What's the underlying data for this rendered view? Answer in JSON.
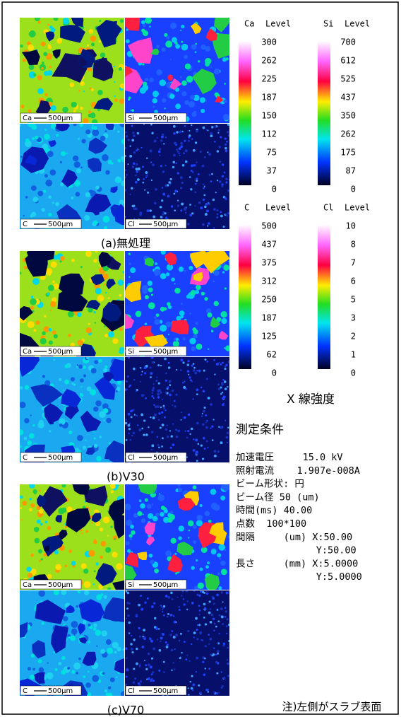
{
  "panels": [
    {
      "caption": "(a)無処理",
      "maps": [
        {
          "element": "Ca",
          "scale": "500μm"
        },
        {
          "element": "Si",
          "scale": "500μm"
        },
        {
          "element": "C",
          "scale": "500μm"
        },
        {
          "element": "Cl",
          "scale": "500μm"
        }
      ]
    },
    {
      "caption": "(b)V30",
      "maps": [
        {
          "element": "Ca",
          "scale": "500μm"
        },
        {
          "element": "Si",
          "scale": "500μm"
        },
        {
          "element": "C",
          "scale": "500μm"
        },
        {
          "element": "Cl",
          "scale": "500μm"
        }
      ]
    },
    {
      "caption": "(c)V70",
      "maps": [
        {
          "element": "Ca",
          "scale": "500μm"
        },
        {
          "element": "Si",
          "scale": "500μm"
        },
        {
          "element": "C",
          "scale": "500μm"
        },
        {
          "element": "Cl",
          "scale": "500μm"
        }
      ]
    }
  ],
  "colorbars": [
    {
      "element": "Ca",
      "unit": "Level",
      "ticks": [
        "300",
        "262",
        "225",
        "187",
        "150",
        "112",
        "75",
        "37",
        "0"
      ]
    },
    {
      "element": "Si",
      "unit": "Level",
      "ticks": [
        "700",
        "612",
        "525",
        "437",
        "350",
        "262",
        "175",
        "87",
        "0"
      ]
    },
    {
      "element": "C",
      "unit": "Level",
      "ticks": [
        "500",
        "437",
        "375",
        "312",
        "250",
        "187",
        "125",
        "62",
        "0"
      ]
    },
    {
      "element": "Cl",
      "unit": "Level",
      "ticks": [
        "10",
        "8",
        "7",
        "6",
        "5",
        "3",
        "2",
        "1",
        "0"
      ]
    }
  ],
  "colorbar_caption": "X 線強度",
  "conditions": {
    "title": "測定条件",
    "lines": [
      "加速電圧     15.0 kV",
      "照射電流    1.907e-008A",
      "ビーム形状: 円",
      "ビーム径 50 (um)",
      "時間(ms) 40.00",
      "点数  100*100",
      "間隔     (um) X:50.00",
      "              Y:50.00",
      "長さ     (mm) X:5.0000",
      "              Y:5.0000"
    ]
  },
  "note": "注)左側がスラブ表面"
}
